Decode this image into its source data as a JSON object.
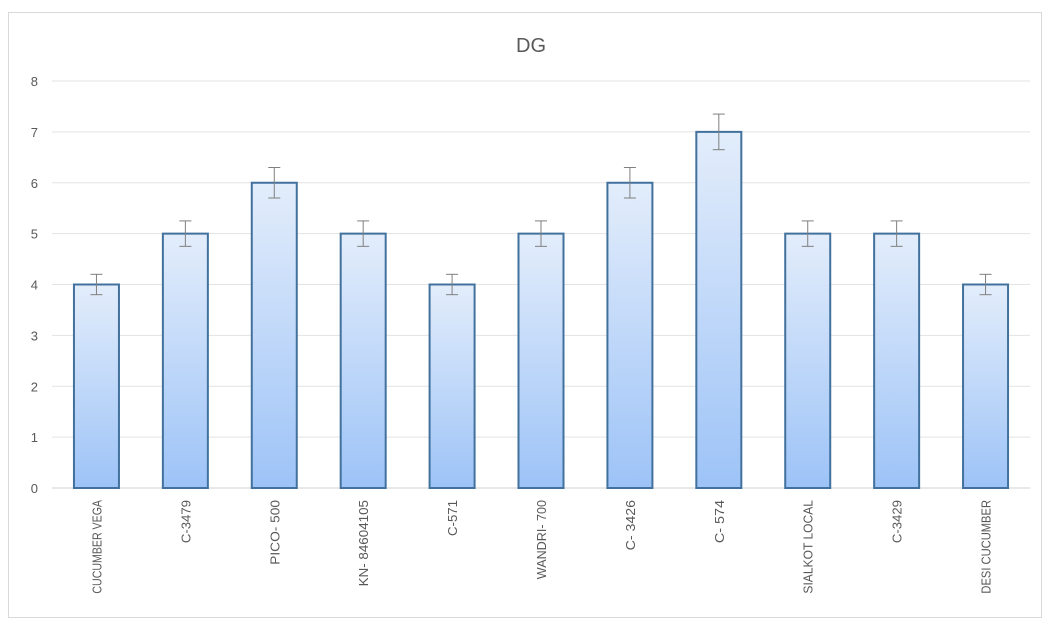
{
  "chart_data": {
    "type": "bar",
    "title": "DG",
    "xlabel": "",
    "ylabel": "",
    "ylim": [
      0,
      8
    ],
    "yticks": [
      0,
      1,
      2,
      3,
      4,
      5,
      6,
      7,
      8
    ],
    "grid": true,
    "categories": [
      "CUCUMBER VEGA",
      "C-3479",
      "PICO- 500",
      "KN- 84604105",
      "C-571",
      "WANDRI- 700",
      "C- 3426",
      "C- 574",
      "SIALKOT LOCAL",
      "C-3429",
      "DESI CUCUMBER"
    ],
    "values": [
      4,
      5,
      6,
      5,
      4,
      5,
      6,
      7,
      5,
      5,
      4
    ],
    "error": [
      0.2,
      0.25,
      0.3,
      0.25,
      0.2,
      0.25,
      0.3,
      0.35,
      0.25,
      0.25,
      0.2
    ],
    "colors": {
      "bar_top": "#e3edfb",
      "bar_bottom": "#9dc3f7",
      "bar_edge": "#41719c",
      "error": "#7f7f7f"
    }
  }
}
